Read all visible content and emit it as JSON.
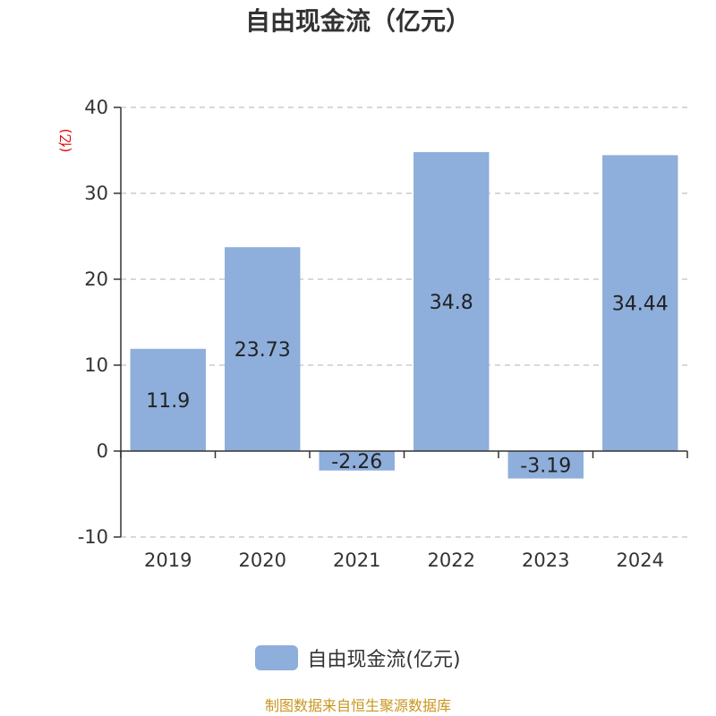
{
  "chart_data": {
    "type": "bar",
    "title": "自由现金流（亿元）",
    "unit_label": "(亿)",
    "categories": [
      "2019",
      "2020",
      "2021",
      "2022",
      "2023",
      "2024"
    ],
    "series": [
      {
        "name": "自由现金流(亿元)",
        "values": [
          11.9,
          23.73,
          -2.26,
          34.8,
          -3.19,
          34.44
        ]
      }
    ],
    "data_labels": [
      "11.9",
      "23.73",
      "-2.26",
      "34.8",
      "-3.19",
      "34.44"
    ],
    "ylim": [
      -10,
      40
    ],
    "yticks": [
      -10,
      0,
      10,
      20,
      30,
      40
    ],
    "grid": true,
    "legend_position": "bottom-center",
    "colors": {
      "bar": "#8eaedb",
      "unit_label": "#e00000",
      "grid": "#cccccc",
      "axis": "#333333"
    }
  },
  "source": "制图数据来自恒生聚源数据库"
}
